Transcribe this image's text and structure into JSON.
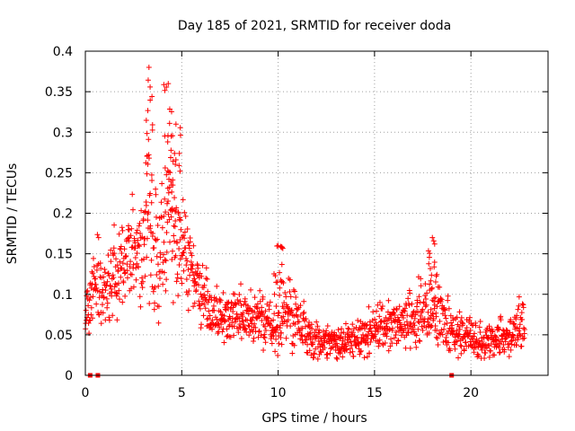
{
  "chart_data": {
    "type": "scatter",
    "title": "Day 185 of 2021, SRMTID for receiver doda",
    "xlabel": "GPS time / hours",
    "ylabel": "SRMTID / TECUs",
    "xlim": [
      0,
      24
    ],
    "ylim": [
      0,
      0.4
    ],
    "x_ticks": [
      0,
      5,
      10,
      15,
      20
    ],
    "y_ticks": [
      0,
      0.05,
      0.1,
      0.15,
      0.2,
      0.25,
      0.3,
      0.35,
      0.4
    ],
    "x_tick_labels": [
      "0",
      "5",
      "10",
      "15",
      "20"
    ],
    "y_tick_labels": [
      "0",
      "0.05",
      "0.1",
      "0.15",
      "0.2",
      "0.25",
      "0.3",
      "0.35",
      "0.4"
    ],
    "grid": true,
    "marker": "+",
    "color": "#ff0000",
    "time_range_hours": [
      0,
      22.8
    ],
    "envelope": {
      "x": [
        0,
        0.5,
        1,
        1.5,
        2,
        2.5,
        3,
        3.3,
        3.5,
        3.8,
        4,
        4.3,
        4.6,
        5,
        5.5,
        6,
        6.5,
        7,
        7.5,
        8,
        8.5,
        9,
        9.5,
        10,
        10.5,
        11,
        11.5,
        12,
        12.5,
        13,
        13.5,
        14,
        14.5,
        15,
        15.5,
        16,
        16.5,
        17,
        17.5,
        18,
        18.5,
        19,
        19.5,
        20,
        20.5,
        21,
        21.5,
        22,
        22.8
      ],
      "median": [
        0.07,
        0.12,
        0.11,
        0.12,
        0.14,
        0.15,
        0.16,
        0.2,
        0.17,
        0.14,
        0.18,
        0.2,
        0.19,
        0.15,
        0.13,
        0.1,
        0.08,
        0.07,
        0.07,
        0.08,
        0.07,
        0.07,
        0.065,
        0.07,
        0.08,
        0.07,
        0.05,
        0.04,
        0.045,
        0.04,
        0.04,
        0.045,
        0.05,
        0.055,
        0.06,
        0.06,
        0.065,
        0.07,
        0.08,
        0.075,
        0.07,
        0.06,
        0.05,
        0.045,
        0.04,
        0.04,
        0.045,
        0.05,
        0.06
      ],
      "spread": [
        0.03,
        0.05,
        0.04,
        0.05,
        0.05,
        0.06,
        0.07,
        0.1,
        0.09,
        0.07,
        0.09,
        0.1,
        0.08,
        0.06,
        0.04,
        0.035,
        0.03,
        0.03,
        0.03,
        0.035,
        0.03,
        0.03,
        0.03,
        0.04,
        0.04,
        0.035,
        0.025,
        0.02,
        0.02,
        0.02,
        0.02,
        0.02,
        0.025,
        0.025,
        0.025,
        0.025,
        0.03,
        0.035,
        0.04,
        0.04,
        0.035,
        0.03,
        0.025,
        0.02,
        0.02,
        0.02,
        0.02,
        0.025,
        0.03
      ]
    },
    "peaks": [
      {
        "x": 3.3,
        "y": 0.38
      },
      {
        "x": 4.3,
        "y": 0.36
      },
      {
        "x": 4.7,
        "y": 0.31
      },
      {
        "x": 10.0,
        "y": 0.16
      },
      {
        "x": 18.0,
        "y": 0.17
      }
    ],
    "zero_markers_x": [
      0.25,
      0.65,
      19.0
    ],
    "n_points": 1500
  }
}
